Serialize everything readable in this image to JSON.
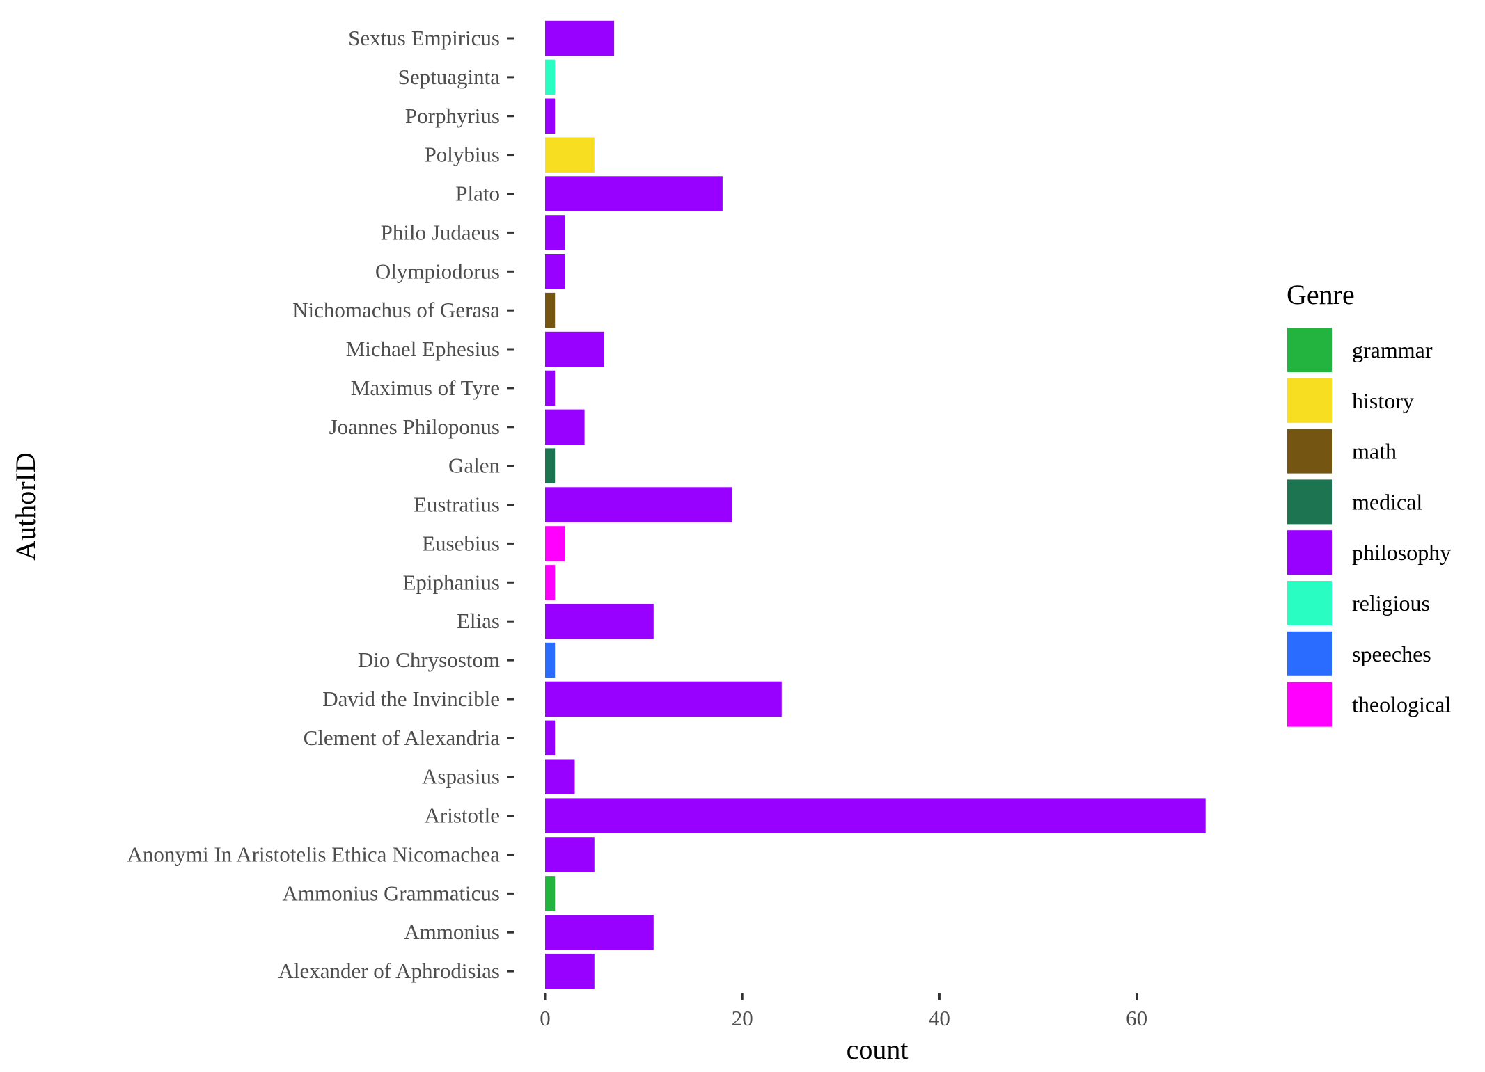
{
  "chart_data": {
    "type": "bar",
    "orientation": "horizontal",
    "xlabel": "count",
    "ylabel": "AuthorID",
    "xlim": [
      0,
      70
    ],
    "x_ticks": [
      0,
      20,
      40,
      60
    ],
    "grid": false,
    "legend_placement": "right",
    "legend_title": "Genre",
    "genres": [
      {
        "name": "grammar",
        "color": "#22B43F"
      },
      {
        "name": "history",
        "color": "#F7DE20"
      },
      {
        "name": "math",
        "color": "#745512"
      },
      {
        "name": "medical",
        "color": "#1C7550"
      },
      {
        "name": "philosophy",
        "color": "#9800FF"
      },
      {
        "name": "religious",
        "color": "#29FDC1"
      },
      {
        "name": "speeches",
        "color": "#2A6CFF"
      },
      {
        "name": "theological",
        "color": "#FF00FF"
      }
    ],
    "categories": [
      "Sextus Empiricus",
      "Septuaginta",
      "Porphyrius",
      "Polybius",
      "Plato",
      "Philo Judaeus",
      "Olympiodorus",
      "Nichomachus of Gerasa",
      "Michael Ephesius",
      "Maximus of Tyre",
      "Joannes Philoponus",
      "Galen",
      "Eustratius",
      "Eusebius",
      "Epiphanius",
      "Elias",
      "Dio Chrysostom",
      "David the Invincible",
      "Clement of Alexandria",
      "Aspasius",
      "Aristotle",
      "Anonymi In Aristotelis Ethica Nicomachea",
      "Ammonius Grammaticus",
      "Ammonius",
      "Alexander of Aphrodisias"
    ],
    "values": [
      7,
      1,
      1,
      5,
      18,
      2,
      2,
      1,
      6,
      1,
      4,
      1,
      19,
      2,
      1,
      11,
      1,
      24,
      1,
      3,
      67,
      5,
      1,
      11,
      5
    ],
    "bar_genres": [
      "philosophy",
      "religious",
      "philosophy",
      "history",
      "philosophy",
      "philosophy",
      "philosophy",
      "math",
      "philosophy",
      "philosophy",
      "philosophy",
      "medical",
      "philosophy",
      "theological",
      "theological",
      "philosophy",
      "speeches",
      "philosophy",
      "philosophy",
      "philosophy",
      "philosophy",
      "philosophy",
      "grammar",
      "philosophy",
      "philosophy"
    ]
  }
}
